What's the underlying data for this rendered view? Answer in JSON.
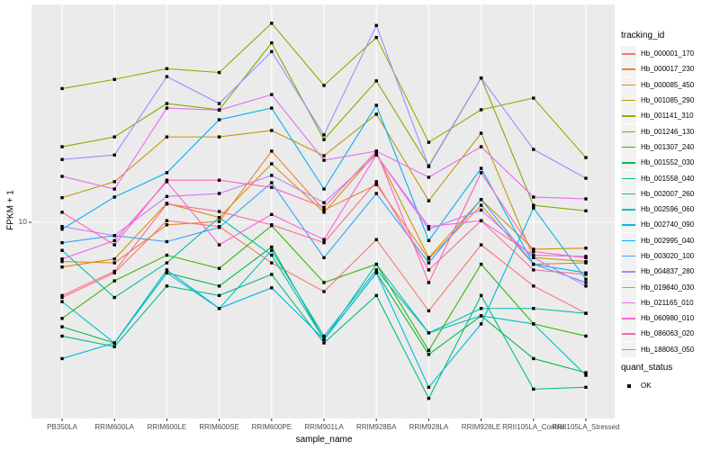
{
  "figure": {
    "panel_bg": "#EBEBEB",
    "grid_color": "#FFFFFF",
    "tick_label_color": "#4D4D4D",
    "point_color": "#000000"
  },
  "axes": {
    "x": {
      "title": "sample_name"
    },
    "y": {
      "title": "FPKM + 1",
      "tick_label": "10"
    }
  },
  "legend": {
    "tracking_title": "tracking_id",
    "quant_title": "quant_status",
    "quant_items": [
      {
        "label": "OK"
      }
    ]
  },
  "chart_data": {
    "type": "line",
    "title": "",
    "xlabel": "sample_name",
    "ylabel": "FPKM + 1",
    "y_scale": "log10",
    "y_tick_values": [
      10
    ],
    "ylim_approx": [
      1,
      130
    ],
    "grid": "major-on",
    "legend_position": "right",
    "point_shape": "filled-black-square (quant_status = OK)",
    "categories": [
      "PB350LA",
      "RRIM600LA",
      "RRIM600LE",
      "RRIM600SE",
      "RRIM600PE",
      "RRIM901LA",
      "RRIM928BA",
      "RRIM928LA",
      "RRIM928LE",
      "RRII105LA_Control",
      "RRII105LA_Stressed"
    ],
    "series": [
      {
        "name": "Hb_000001_170",
        "color": "#F8766D",
        "values": [
          4.0,
          5.4,
          10.2,
          9.5,
          6.1,
          4.3,
          8.1,
          3.4,
          7.6,
          4.6,
          3.3
        ]
      },
      {
        "name": "Hb_000017_230",
        "color": "#EA8331",
        "values": [
          6.2,
          6.1,
          9.7,
          10.1,
          23.8,
          11.6,
          15.8,
          6.4,
          12.3,
          6.0,
          6.1
        ]
      },
      {
        "name": "Hb_000085_450",
        "color": "#D89000",
        "values": [
          5.8,
          6.4,
          12.6,
          10.6,
          20.4,
          11.3,
          23.3,
          6.5,
          13.2,
          7.2,
          7.3
        ]
      },
      {
        "name": "Hb_001085_290",
        "color": "#C09B00",
        "values": [
          13.5,
          16.4,
          28.3,
          28.3,
          30.6,
          22.5,
          37.3,
          13.0,
          29.6,
          6.5,
          6.2
        ]
      },
      {
        "name": "Hb_001141_310",
        "color": "#A3A500",
        "values": [
          51,
          57,
          65,
          62,
          113,
          53,
          95,
          26.5,
          39.4,
          45.4,
          22.0
        ]
      },
      {
        "name": "Hb_001246_130",
        "color": "#7CAE00",
        "values": [
          25.1,
          28.3,
          42.5,
          39.4,
          89,
          27.4,
          56,
          19.9,
          58,
          12.3,
          11.5
        ]
      },
      {
        "name": "Hb_001307_240",
        "color": "#39B600",
        "values": [
          3.1,
          4.9,
          6.7,
          5.7,
          9.6,
          4.8,
          6.0,
          2.1,
          6.0,
          2.9,
          2.5
        ]
      },
      {
        "name": "Hb_001552_030",
        "color": "#00BB4E",
        "values": [
          2.8,
          2.3,
          5.4,
          4.6,
          7.4,
          2.4,
          5.4,
          2.0,
          3.2,
          1.9,
          1.6
        ]
      },
      {
        "name": "Hb_001558_040",
        "color": "#00BF7D",
        "values": [
          2.5,
          2.2,
          4.6,
          4.1,
          5.3,
          2.3,
          4.1,
          1.17,
          4.1,
          1.31,
          1.34
        ]
      },
      {
        "name": "Hb_002007_260",
        "color": "#00C1A3",
        "values": [
          7.1,
          4.0,
          6.1,
          10.6,
          6.7,
          2.4,
          6.0,
          2.6,
          3.5,
          3.5,
          3.3
        ]
      },
      {
        "name": "Hb_002596_060",
        "color": "#00BFC4",
        "values": [
          3.8,
          2.3,
          5.6,
          3.5,
          7.1,
          2.5,
          5.6,
          2.6,
          3.2,
          2.9,
          1.55
        ]
      },
      {
        "name": "Hb_002740_090",
        "color": "#00BAE0",
        "values": [
          1.9,
          2.3,
          5.4,
          3.5,
          4.5,
          2.4,
          5.4,
          1.34,
          2.9,
          11.9,
          5.0
        ]
      },
      {
        "name": "Hb_002995_040",
        "color": "#00B0F6",
        "values": [
          9.2,
          13.6,
          18.3,
          34.9,
          40.2,
          15.0,
          41.6,
          8.0,
          19.3,
          6.0,
          5.4
        ]
      },
      {
        "name": "Hb_003020_100",
        "color": "#35A2FF",
        "values": [
          7.8,
          8.5,
          7.9,
          9.4,
          16.2,
          6.5,
          14.2,
          6.1,
          13.2,
          6.0,
          4.8
        ]
      },
      {
        "name": "Hb_004837_280",
        "color": "#9590FF",
        "values": [
          21.5,
          22.7,
          59,
          42.5,
          80,
          29,
          110,
          19.7,
          58,
          24.3,
          17.1
        ]
      },
      {
        "name": "Hb_019840_030",
        "color": "#C77CFF",
        "values": [
          9.5,
          8.5,
          13.7,
          14.2,
          17.7,
          12.7,
          22.7,
          9.2,
          11.6,
          6.5,
          4.6
        ]
      },
      {
        "name": "Hb_021165_010",
        "color": "#E76BF3",
        "values": [
          17.5,
          15.0,
          40.2,
          39.2,
          47.4,
          21.3,
          23.8,
          17.3,
          25.1,
          13.6,
          13.3
        ]
      },
      {
        "name": "Hb_060980_010",
        "color": "#FA62DB",
        "values": [
          6.4,
          8.0,
          16.4,
          7.6,
          11.0,
          8.1,
          22.7,
          9.5,
          10.2,
          6.7,
          6.6
        ]
      },
      {
        "name": "Hb_086063_020",
        "color": "#FF62BC",
        "values": [
          11.3,
          7.6,
          16.7,
          16.7,
          15.3,
          12.0,
          23.8,
          4.8,
          18.3,
          7.0,
          6.5
        ]
      },
      {
        "name": "Hb_188063_050",
        "color": "#FF6A98",
        "values": [
          4.1,
          5.5,
          12.5,
          11.4,
          9.7,
          7.8,
          16.4,
          5.6,
          10.2,
          5.6,
          5.3
        ]
      }
    ]
  }
}
